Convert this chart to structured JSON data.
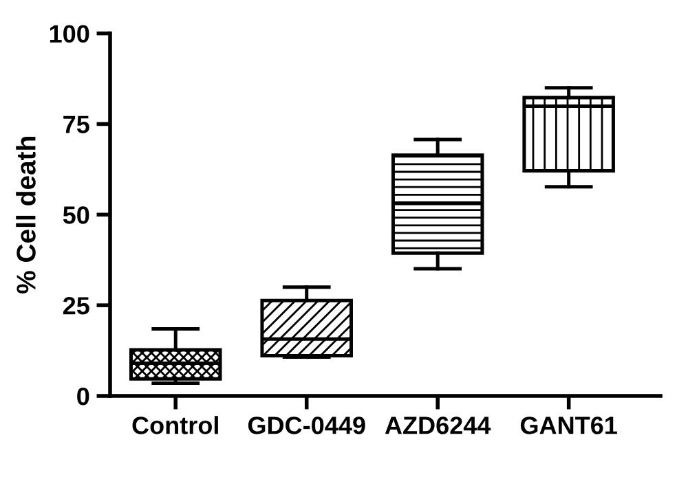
{
  "chart_data": {
    "type": "box",
    "ylabel": "% Cell death",
    "categories": [
      "Control",
      "GDC-0449",
      "AZD6244",
      "GANT61"
    ],
    "series": [
      {
        "color": "#000000",
        "boxes": [
          {
            "low": 3.5,
            "q1": 4.7,
            "median": 9,
            "q3": 12.7,
            "high": 18.5
          },
          {
            "low": 10.7,
            "q1": 11.1,
            "median": 15.7,
            "q3": 26.3,
            "high": 30
          },
          {
            "low": 35.1,
            "q1": 39.4,
            "median": 53.1,
            "q3": 66.4,
            "high": 70.7
          },
          {
            "low": 57.7,
            "q1": 62.1,
            "median": 79.9,
            "q3": 82.3,
            "high": 85
          }
        ]
      }
    ],
    "ylim": [
      0,
      100
    ],
    "yticks": [
      0,
      25,
      50,
      75,
      100
    ],
    "grid": false,
    "legend": false
  }
}
